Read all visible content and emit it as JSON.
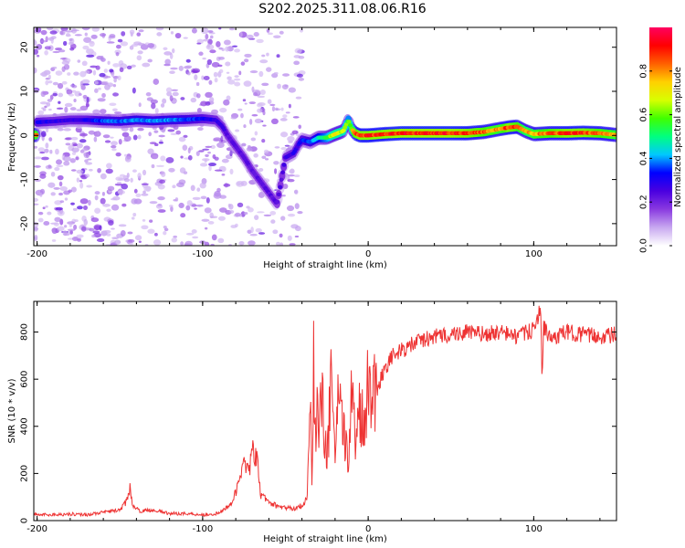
{
  "title": "S202.2025.311.08.06.R16",
  "chart_data": [
    {
      "type": "heatmap",
      "name": "spectrogram",
      "xlabel": "Height of straight line (km)",
      "ylabel": "Frequency (Hz)",
      "xlim": [
        -202,
        150
      ],
      "ylim": [
        -25,
        24.5
      ],
      "xticks": [
        -200,
        -100,
        0,
        100
      ],
      "yticks": [
        -20,
        -10,
        0,
        10,
        20
      ],
      "colorbar": {
        "label": "Normalized spectral amplitude",
        "range": [
          0.0,
          1.0
        ],
        "ticks": [
          0.0,
          0.2,
          0.4,
          0.6,
          0.8
        ],
        "tick_labels": [
          "0.0",
          "0.2",
          "0.4",
          "0.6",
          "0.8"
        ],
        "colormap": [
          "#ffffff",
          "#c8a8f0",
          "#8a3ae0",
          "#4a00e0",
          "#0000ff",
          "#00c8ff",
          "#00ff80",
          "#40ff00",
          "#d8ff00",
          "#ffd000",
          "#ff6000",
          "#ff0000",
          "#ff0060"
        ]
      },
      "ridge": {
        "height_km": [
          -200,
          -190,
          -180,
          -170,
          -160,
          -150,
          -140,
          -130,
          -120,
          -110,
          -100,
          -92,
          -88,
          -85,
          -80,
          -75,
          -70,
          -65,
          -60,
          -55,
          -50,
          -45,
          -42,
          -40,
          -35,
          -30,
          -25,
          -20,
          -15,
          -12,
          -10,
          -8,
          -5,
          0,
          10,
          20,
          30,
          40,
          50,
          60,
          70,
          80,
          85,
          90,
          95,
          100,
          110,
          120,
          130,
          140,
          150
        ],
        "freq_hz": [
          3,
          3.2,
          3.5,
          3.5,
          3.3,
          3.2,
          3.5,
          3.3,
          3.5,
          3.6,
          3.8,
          3.5,
          2,
          0,
          -2.5,
          -5,
          -8,
          -10.5,
          -13,
          -15.5,
          -5,
          -4,
          -2,
          -1,
          -1.5,
          -0.5,
          -0.5,
          0.3,
          1,
          3.5,
          1.5,
          0.5,
          0,
          0,
          0.3,
          0.5,
          0.5,
          0.5,
          0.5,
          0.5,
          0.8,
          1.5,
          1.8,
          2,
          1,
          0.3,
          0.5,
          0.5,
          0.6,
          0.5,
          0.1
        ],
        "amplitude": [
          0.35,
          0.3,
          0.3,
          0.32,
          0.4,
          0.4,
          0.42,
          0.42,
          0.42,
          0.4,
          0.35,
          0.3,
          0.28,
          0.25,
          0.25,
          0.25,
          0.25,
          0.25,
          0.25,
          0.25,
          0.28,
          0.3,
          0.3,
          0.35,
          0.4,
          0.5,
          0.6,
          0.75,
          0.7,
          0.6,
          0.7,
          0.9,
          0.95,
          0.95,
          0.95,
          0.97,
          0.97,
          0.97,
          0.97,
          0.95,
          0.9,
          0.85,
          0.95,
          0.9,
          0.8,
          0.85,
          0.9,
          0.95,
          0.95,
          0.9,
          0.85
        ]
      }
    },
    {
      "type": "line",
      "name": "snr",
      "xlabel": "Height of straight line (km)",
      "ylabel": "SNR (10 * v/v)",
      "xlim": [
        -202,
        150
      ],
      "ylim": [
        0,
        930
      ],
      "xticks": [
        -200,
        -100,
        0,
        100
      ],
      "yticks": [
        0,
        200,
        400,
        600,
        800
      ],
      "color": "#ee3333",
      "series": [
        {
          "name": "SNR",
          "x": [
            -202,
            -190,
            -180,
            -170,
            -160,
            -150,
            -146,
            -144,
            -142,
            -138,
            -130,
            -120,
            -110,
            -100,
            -90,
            -82,
            -78,
            -75,
            -72,
            -70,
            -67,
            -65,
            -60,
            -55,
            -50,
            -45,
            -40,
            -37,
            -35,
            -34,
            -33,
            -32,
            -31,
            -30,
            -29,
            -27,
            -25,
            -22,
            -20,
            -18,
            -15,
            -12,
            -10,
            -8,
            -5,
            -3,
            0,
            5,
            10,
            15,
            20,
            25,
            30,
            40,
            50,
            60,
            70,
            80,
            90,
            100,
            103,
            104,
            105,
            106,
            110,
            120,
            130,
            140,
            150
          ],
          "y": [
            25,
            25,
            28,
            25,
            35,
            45,
            80,
            140,
            60,
            40,
            45,
            30,
            30,
            25,
            30,
            80,
            160,
            270,
            200,
            300,
            250,
            110,
            80,
            60,
            55,
            50,
            65,
            90,
            500,
            150,
            760,
            300,
            560,
            250,
            750,
            400,
            250,
            600,
            300,
            500,
            350,
            300,
            550,
            350,
            500,
            400,
            600,
            550,
            650,
            700,
            720,
            740,
            760,
            780,
            790,
            800,
            790,
            800,
            780,
            810,
            870,
            930,
            620,
            820,
            770,
            800,
            790,
            780,
            790
          ]
        }
      ]
    }
  ]
}
